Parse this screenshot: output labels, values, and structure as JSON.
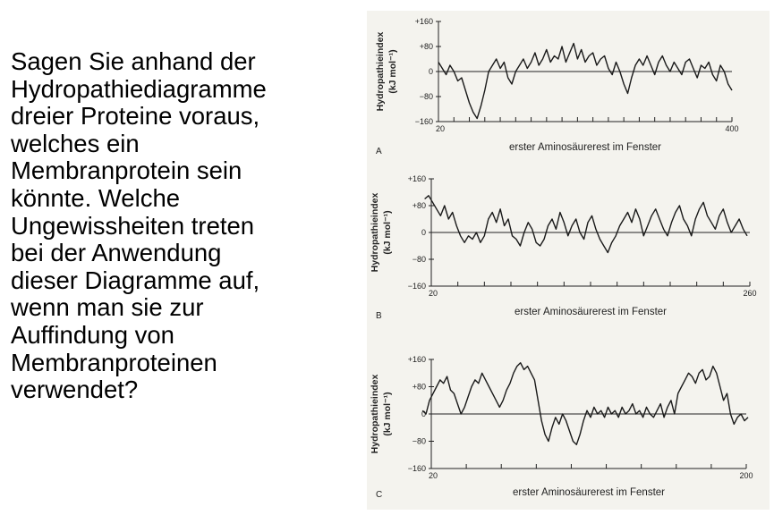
{
  "question": {
    "lines": [
      " Sagen Sie anhand der",
      "Hydropathiediagramme",
      "dreier Proteine voraus,",
      "welches ein",
      "Membranprotein sein",
      "könnte. Welche",
      "Ungewissheiten treten",
      "bei der Anwendung",
      "dieser Diagramme auf,",
      "wenn man sie zur",
      "Auffindung von",
      "Membranproteinen",
      "verwendet?"
    ]
  },
  "chart_data": [
    {
      "type": "line",
      "panel": "A",
      "xlabel": "erster Aminosäurerest im Fenster",
      "ylabel": "Hydropathieindex",
      "ylabel_unit": "(kJ mol⁻¹)",
      "xlim": [
        20,
        400
      ],
      "ylim": [
        -160,
        160
      ],
      "x_tick_labels": [
        "20",
        "400"
      ],
      "y_tick_labels": [
        "+160",
        "+80",
        "0",
        "−80",
        "−160"
      ],
      "y_ticks": [
        160,
        80,
        0,
        -80,
        -160
      ],
      "x_minor_ticks": [
        20,
        40,
        60,
        80,
        100,
        120,
        140,
        160,
        180,
        200,
        220,
        240,
        260,
        280,
        300,
        320,
        340,
        360,
        380,
        400
      ],
      "series": [
        {
          "x": [
            20,
            25,
            30,
            35,
            40,
            45,
            50,
            55,
            60,
            65,
            70,
            75,
            80,
            85,
            90,
            95,
            100,
            105,
            110,
            115,
            120,
            125,
            130,
            135,
            140,
            145,
            150,
            155,
            160,
            165,
            170,
            175,
            180,
            185,
            190,
            195,
            200,
            205,
            210,
            215,
            220,
            225,
            230,
            235,
            240,
            245,
            250,
            255,
            260,
            265,
            270,
            275,
            280,
            285,
            290,
            295,
            300,
            305,
            310,
            315,
            320,
            325,
            330,
            335,
            340,
            345,
            350,
            355,
            360,
            365,
            370,
            375,
            380,
            385,
            390,
            395,
            400
          ],
          "values": [
            30,
            10,
            -10,
            20,
            0,
            -30,
            -20,
            -60,
            -100,
            -130,
            -150,
            -110,
            -60,
            0,
            20,
            40,
            10,
            30,
            -20,
            -40,
            0,
            20,
            40,
            10,
            30,
            60,
            20,
            40,
            70,
            30,
            50,
            40,
            80,
            30,
            60,
            90,
            40,
            70,
            30,
            50,
            60,
            20,
            40,
            50,
            10,
            -10,
            30,
            0,
            -40,
            -70,
            -20,
            20,
            40,
            20,
            50,
            20,
            -10,
            30,
            50,
            20,
            0,
            30,
            10,
            -10,
            30,
            40,
            10,
            -20,
            20,
            10,
            30,
            -10,
            -30,
            20,
            0,
            -40,
            -60
          ]
        }
      ]
    },
    {
      "type": "line",
      "panel": "B",
      "xlabel": "erster Aminosäurerest im Fenster",
      "ylabel": "Hydropathieindex",
      "ylabel_unit": "(kJ mol⁻¹)",
      "xlim": [
        20,
        260
      ],
      "ylim": [
        -160,
        160
      ],
      "x_tick_labels": [
        "20",
        "260"
      ],
      "y_tick_labels": [
        "+160",
        "+80",
        "0",
        "−80",
        "−160"
      ],
      "y_ticks": [
        160,
        80,
        0,
        -80,
        -160
      ],
      "x_minor_ticks": [
        20,
        40,
        60,
        80,
        100,
        120,
        140,
        160,
        180,
        200,
        220,
        240,
        260
      ],
      "series": [
        {
          "x": [
            15,
            18,
            21,
            24,
            27,
            30,
            33,
            36,
            39,
            42,
            45,
            48,
            51,
            54,
            57,
            60,
            63,
            66,
            69,
            72,
            75,
            78,
            81,
            84,
            87,
            90,
            93,
            96,
            99,
            102,
            105,
            108,
            111,
            114,
            117,
            120,
            123,
            126,
            129,
            132,
            135,
            138,
            141,
            144,
            147,
            150,
            153,
            156,
            159,
            162,
            165,
            168,
            171,
            174,
            177,
            180,
            183,
            186,
            189,
            192,
            195,
            198,
            201,
            204,
            207,
            210,
            213,
            216,
            219,
            222,
            225,
            228,
            231,
            234,
            237,
            240,
            243,
            246,
            249,
            252,
            255,
            258
          ],
          "values": [
            100,
            110,
            90,
            70,
            50,
            80,
            40,
            60,
            20,
            -10,
            -30,
            -10,
            -20,
            0,
            -30,
            -10,
            40,
            60,
            30,
            70,
            20,
            40,
            -10,
            -20,
            -40,
            0,
            30,
            10,
            -30,
            -40,
            -20,
            20,
            40,
            10,
            60,
            30,
            -10,
            20,
            40,
            0,
            -20,
            30,
            50,
            10,
            -20,
            -40,
            -60,
            -30,
            -10,
            20,
            40,
            60,
            30,
            70,
            40,
            -10,
            20,
            50,
            70,
            40,
            10,
            -10,
            30,
            60,
            80,
            40,
            20,
            -10,
            40,
            70,
            90,
            50,
            30,
            10,
            50,
            70,
            30,
            0,
            20,
            40,
            10,
            -10
          ]
        }
      ]
    },
    {
      "type": "line",
      "panel": "C",
      "xlabel": "erster Aminosäurerest im Fenster",
      "ylabel": "Hydropathieindex",
      "ylabel_unit": "(kJ mol⁻¹)",
      "xlim": [
        20,
        200
      ],
      "ylim": [
        -160,
        160
      ],
      "x_tick_labels": [
        "20",
        "200"
      ],
      "y_tick_labels": [
        "+160",
        "+80",
        "0",
        "−80",
        "−160"
      ],
      "y_ticks": [
        160,
        80,
        0,
        -80,
        -160
      ],
      "x_minor_ticks": [
        20,
        40,
        60,
        80,
        100,
        120,
        140,
        160,
        180,
        200
      ],
      "series": [
        {
          "x": [
            15,
            17,
            19,
            21,
            23,
            25,
            27,
            29,
            31,
            33,
            35,
            37,
            39,
            41,
            43,
            45,
            47,
            49,
            51,
            53,
            55,
            57,
            59,
            61,
            63,
            65,
            67,
            69,
            71,
            73,
            75,
            77,
            79,
            81,
            83,
            85,
            87,
            89,
            91,
            93,
            95,
            97,
            99,
            101,
            103,
            105,
            107,
            109,
            111,
            113,
            115,
            117,
            119,
            121,
            123,
            125,
            127,
            129,
            131,
            133,
            135,
            137,
            139,
            141,
            143,
            145,
            147,
            149,
            151,
            153,
            155,
            157,
            159,
            161,
            163,
            165,
            167,
            169,
            171,
            173,
            175,
            177,
            179,
            181,
            183,
            185,
            187,
            189,
            191,
            193,
            195,
            197,
            199,
            201
          ],
          "values": [
            10,
            0,
            40,
            60,
            80,
            100,
            90,
            110,
            70,
            60,
            30,
            0,
            20,
            50,
            80,
            100,
            90,
            120,
            100,
            80,
            60,
            40,
            20,
            40,
            70,
            90,
            120,
            140,
            150,
            130,
            140,
            120,
            100,
            40,
            -20,
            -60,
            -80,
            -40,
            -10,
            -30,
            0,
            -20,
            -50,
            -80,
            -90,
            -60,
            -20,
            10,
            -10,
            20,
            0,
            10,
            -10,
            20,
            0,
            10,
            -10,
            20,
            0,
            10,
            30,
            0,
            10,
            -10,
            20,
            0,
            -10,
            10,
            30,
            -10,
            20,
            40,
            0,
            60,
            80,
            100,
            120,
            110,
            90,
            120,
            130,
            100,
            110,
            140,
            120,
            80,
            40,
            60,
            0,
            -30,
            -10,
            0,
            -20,
            -10
          ]
        }
      ]
    }
  ]
}
